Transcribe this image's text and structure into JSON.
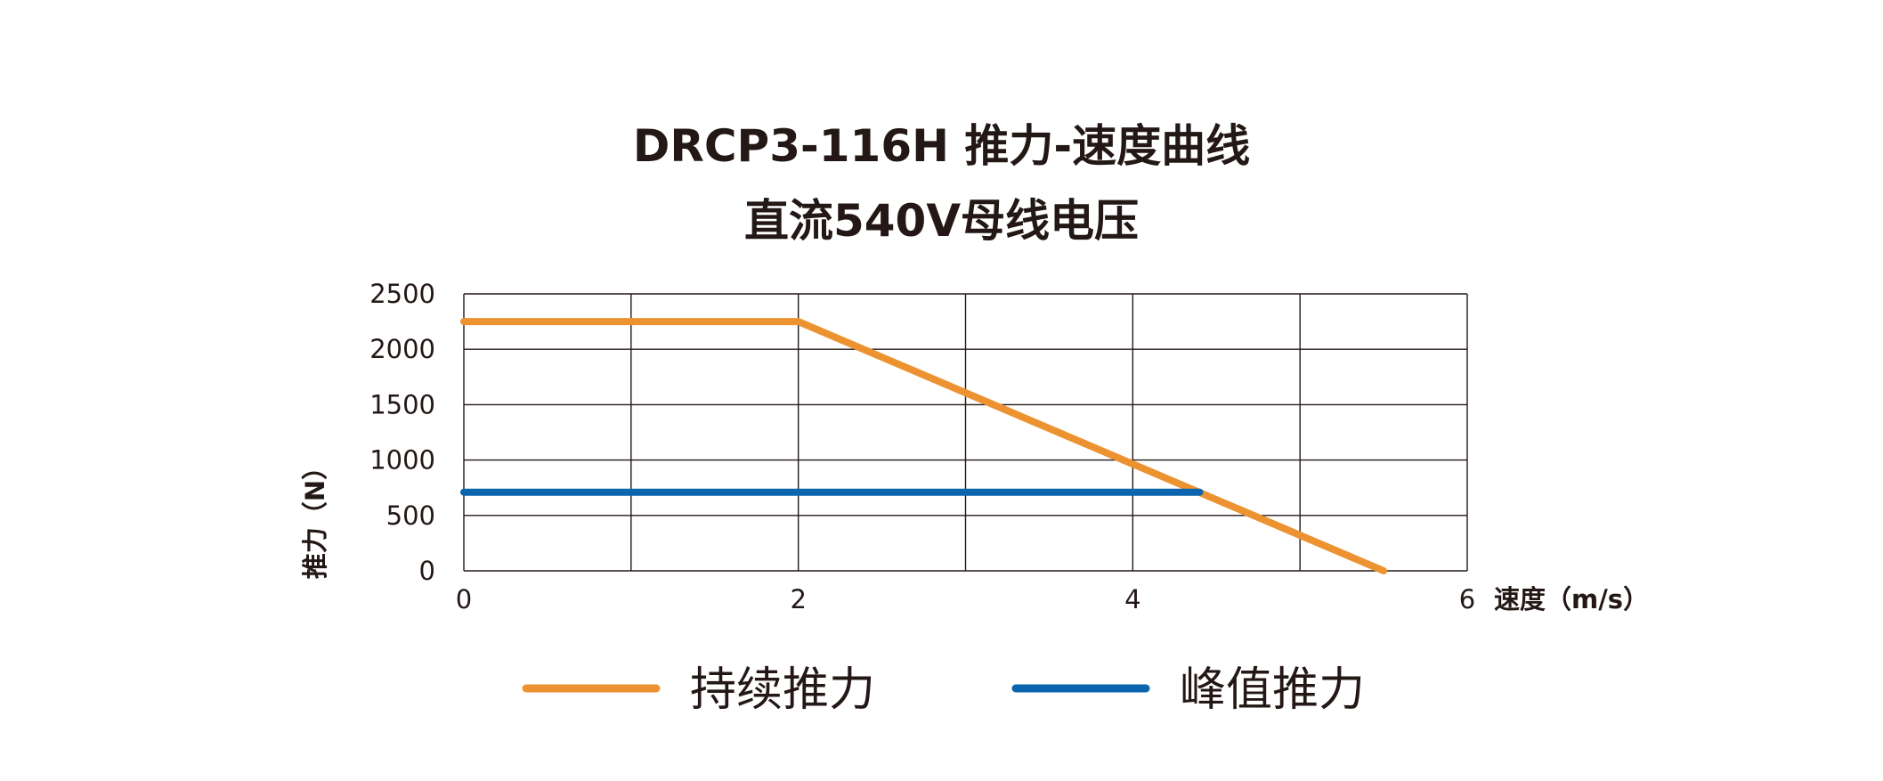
{
  "chart_data": {
    "type": "line",
    "title": "DRCP3-116H 推力-速度曲线",
    "subtitle": "直流540V母线电压",
    "xlabel": "速度（m/s）",
    "ylabel": "推力（N）",
    "xlim": [
      0,
      6
    ],
    "ylim": [
      0,
      2500
    ],
    "x_ticks": [
      "0",
      "2",
      "4",
      "6"
    ],
    "y_ticks": [
      "0",
      "500",
      "1000",
      "1500",
      "2000",
      "2500"
    ],
    "grid": true,
    "legend_position": "bottom",
    "series": [
      {
        "name": "持续推力",
        "color": "#ED9230",
        "x": [
          0,
          2,
          5.5
        ],
        "y": [
          2250,
          2250,
          0
        ]
      },
      {
        "name": "峰值推力",
        "color": "#0B64AE",
        "x": [
          0,
          4.4
        ],
        "y": [
          710,
          710
        ]
      }
    ]
  }
}
